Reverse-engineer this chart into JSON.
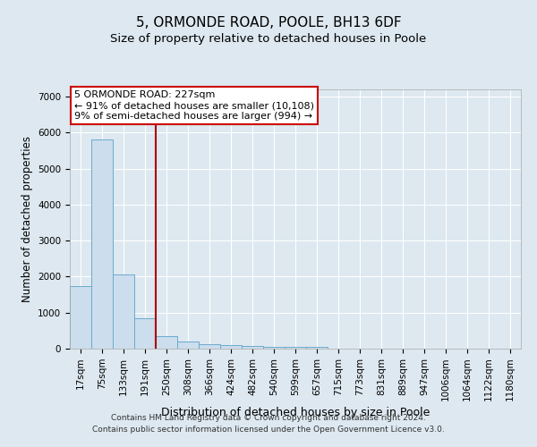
{
  "title": "5, ORMONDE ROAD, POOLE, BH13 6DF",
  "subtitle": "Size of property relative to detached houses in Poole",
  "xlabel": "Distribution of detached houses by size in Poole",
  "ylabel": "Number of detached properties",
  "footnote1": "Contains HM Land Registry data © Crown copyright and database right 2024.",
  "footnote2": "Contains public sector information licensed under the Open Government Licence v3.0.",
  "bar_labels": [
    "17sqm",
    "75sqm",
    "133sqm",
    "191sqm",
    "250sqm",
    "308sqm",
    "366sqm",
    "424sqm",
    "482sqm",
    "540sqm",
    "599sqm",
    "657sqm",
    "715sqm",
    "773sqm",
    "831sqm",
    "889sqm",
    "947sqm",
    "1006sqm",
    "1064sqm",
    "1122sqm",
    "1180sqm"
  ],
  "bar_values": [
    1750,
    5800,
    2050,
    850,
    350,
    200,
    120,
    100,
    80,
    60,
    60,
    60,
    0,
    0,
    0,
    0,
    0,
    0,
    0,
    0,
    0
  ],
  "bar_color": "#ccdded",
  "bar_edge_color": "#6aabcc",
  "red_line_index": 4,
  "red_line_color": "#aa0000",
  "annotation_text": "5 ORMONDE ROAD: 227sqm\n← 91% of detached houses are smaller (10,108)\n9% of semi-detached houses are larger (994) →",
  "annotation_box_color": "#ffffff",
  "annotation_box_edge": "#cc0000",
  "ylim": [
    0,
    7200
  ],
  "yticks": [
    0,
    1000,
    2000,
    3000,
    4000,
    5000,
    6000,
    7000
  ],
  "background_color": "#dde8f0",
  "plot_bg_color": "#dde8f0",
  "grid_color": "#ffffff",
  "title_fontsize": 11,
  "subtitle_fontsize": 9.5,
  "xlabel_fontsize": 9,
  "ylabel_fontsize": 8.5,
  "tick_fontsize": 7.5,
  "footnote_fontsize": 6.5
}
